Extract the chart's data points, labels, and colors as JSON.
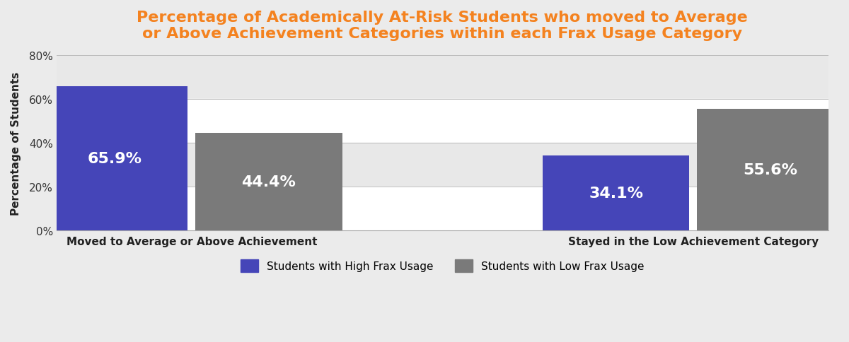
{
  "title_line1": "Percentage of Academically At-Risk Students who moved to Average",
  "title_line2": "or Above Achievement Categories within each Frax Usage Category",
  "title_color": "#F4821F",
  "title_fontsize": 16,
  "categories": [
    "Moved to Average or Above Achievement",
    "Stayed in the Low Achievement Category"
  ],
  "high_usage_values": [
    65.9,
    34.1
  ],
  "low_usage_values": [
    44.4,
    55.6
  ],
  "high_usage_color": "#4545B8",
  "low_usage_color": "#7A7A7A",
  "ylabel": "Percentage of Students",
  "ylim": [
    0,
    80
  ],
  "yticks": [
    0,
    20,
    40,
    60,
    80
  ],
  "ytick_labels": [
    "0%",
    "20%",
    "40%",
    "60%",
    "80%"
  ],
  "legend_label_high": "Students with High Frax Usage",
  "legend_label_low": "Students with Low Frax Usage",
  "background_color": "#EBEBEB",
  "plot_background_color": "#FFFFFF",
  "label_fontsize": 16,
  "bar_width": 0.38,
  "x_positions": [
    0.35,
    1.65
  ]
}
